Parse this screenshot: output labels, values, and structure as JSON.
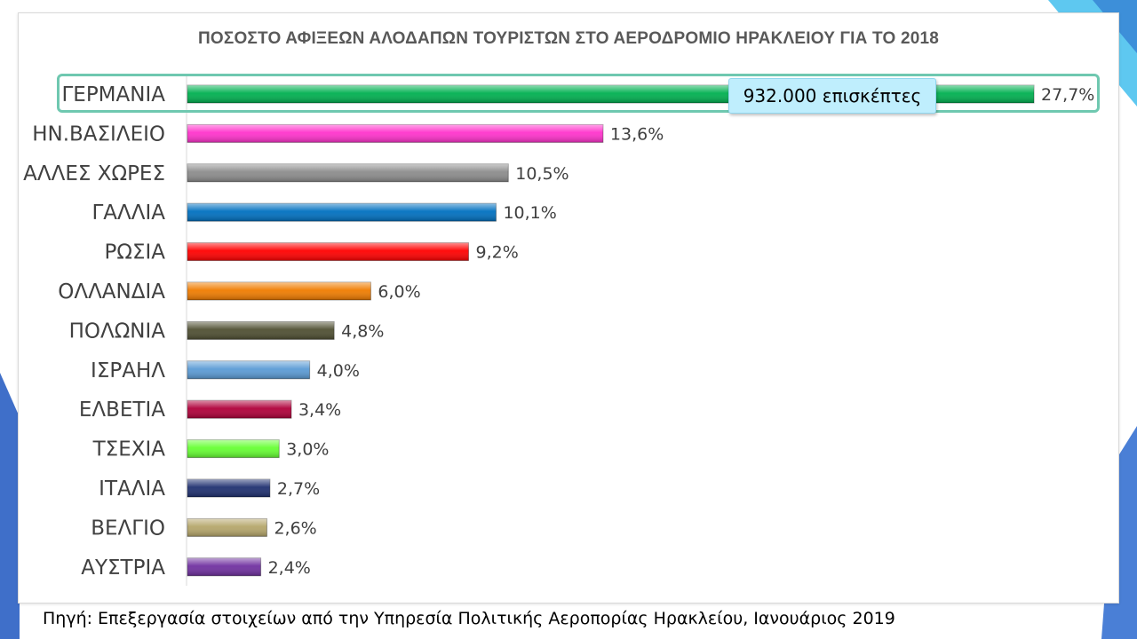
{
  "chart_data": {
    "type": "bar",
    "orientation": "horizontal",
    "title": "ΠΟΣΟΣΤΟ ΑΦΙΞΕΩΝ ΑΛΟΔΑΠΩΝ ΤΟΥΡΙΣΤΩΝ ΣΤΟ ΑΕΡΟΔΡΟΜΙΟ ΗΡΑΚΛΕΙΟΥ ΓΙΑ ΤΟ 2018",
    "categories": [
      "ΓΕΡΜΑΝΙΑ",
      "ΗΝ.ΒΑΣΙΛΕΙΟ",
      "ΑΛΛΕΣ ΧΩΡΕΣ",
      "ΓΑΛΛΙΑ",
      "ΡΩΣΙΑ",
      "ΟΛΛΑΝΔΙΑ",
      "ΠΟΛΩΝΙΑ",
      "ΙΣΡΑΗΛ",
      "ΕΛΒΕΤΙΑ",
      "ΤΣΕΧΙΑ",
      "ΙΤΑΛΙΑ",
      "ΒΕΛΓΙΟ",
      "ΑΥΣΤΡΙΑ"
    ],
    "values": [
      27.7,
      13.6,
      10.5,
      10.1,
      9.2,
      6.0,
      4.8,
      4.0,
      3.4,
      3.0,
      2.7,
      2.6,
      2.4
    ],
    "value_labels": [
      "27,7%",
      "13,6%",
      "10,5%",
      "10,1%",
      "9,2%",
      "6,0%",
      "4,8%",
      "4,0%",
      "3,4%",
      "3,0%",
      "2,7%",
      "2,6%",
      "2,4%"
    ],
    "colors": [
      "#00b050",
      "#ff33cc",
      "#8c8c8c",
      "#0070c0",
      "#ff0000",
      "#f07c00",
      "#4f4f32",
      "#5b9bd5",
      "#b0003a",
      "#66ff33",
      "#1f3070",
      "#b5a66a",
      "#7030a0"
    ],
    "xlim": [
      0,
      27.7
    ],
    "grid": false,
    "legend": "none",
    "callout": {
      "category": "ΓΕΡΜΑΝΙΑ",
      "text": "932.000 επισκέπτες"
    }
  },
  "source": "Πηγή: Επεξεργασία στοιχείων από την Υπηρεσία Πολιτικής Αεροπορίας Ηρακλείου, Ιανουάριος 2019",
  "theme": {
    "accent_blue": "#3d8fd9",
    "accent_cyan": "#5ec8f0",
    "highlight": "#6fc8b0"
  }
}
